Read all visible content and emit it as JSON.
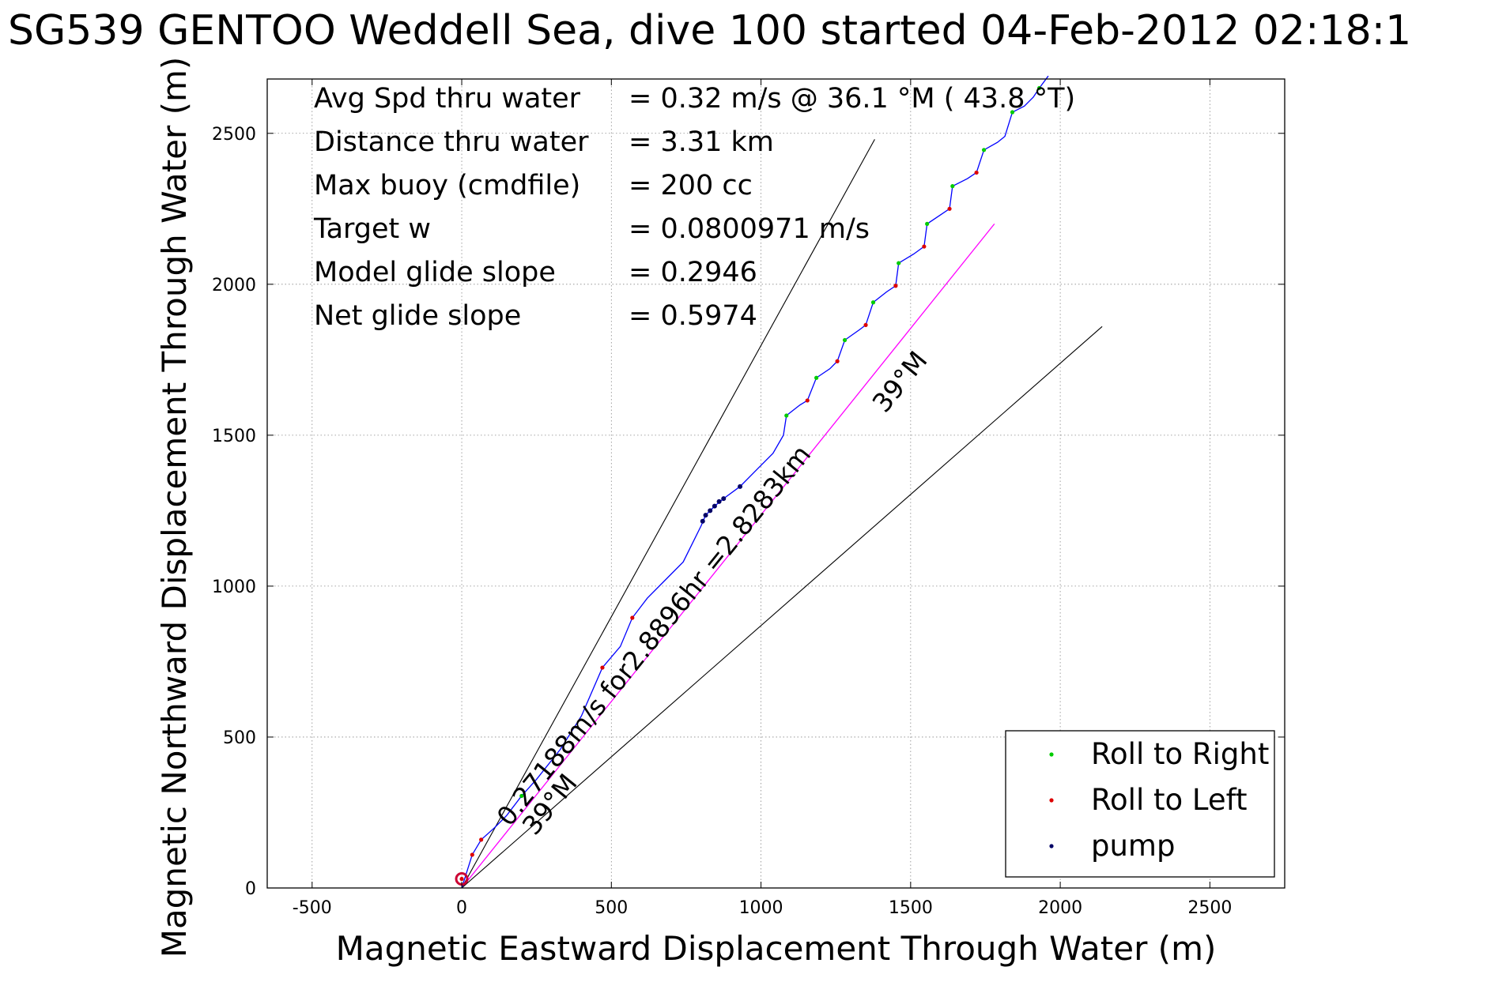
{
  "chart_data": {
    "type": "line",
    "title": "SG539 GENTOO Weddell Sea, dive 100 started 04-Feb-2012 02:18:1",
    "xlabel": "Magnetic Eastward Displacement Through Water (m)",
    "ylabel": "Magnetic Northward Displacement Through Water (m)",
    "xlim": [
      -650,
      2750
    ],
    "ylim": [
      0,
      2680
    ],
    "xticks": [
      -500,
      0,
      500,
      1000,
      1500,
      2000,
      2500
    ],
    "yticks": [
      0,
      500,
      1000,
      1500,
      2000,
      2500
    ],
    "grid": true,
    "legend_position": "bottom-right",
    "stats": [
      {
        "label": "Avg Spd thru water",
        "value": "=  0.32 m/s @  36.1 °M ( 43.8 °T)"
      },
      {
        "label": "Distance thru water",
        "value": "=  3.31 km"
      },
      {
        "label": "Max buoy (cmdfile)",
        "value": "= 200 cc"
      },
      {
        "label": "Target w",
        "value": "= 0.0800971 m/s"
      },
      {
        "label": "Model glide slope",
        "value": "= 0.2946"
      },
      {
        "label": "Net glide slope",
        "value": "= 0.5974"
      }
    ],
    "annotations": {
      "current_label": "0.27188m/s for2.8896hr =2.8283km",
      "heading_label_upper": "39°M",
      "heading_label_lower": "39°M"
    },
    "series": [
      {
        "name": "Roll to Right",
        "color": "#00cc00",
        "marker": "dot",
        "x": [
          200,
          1085,
          1185,
          1280,
          1375,
          1460,
          1555,
          1640,
          1745,
          1840,
          1930
        ],
        "y": [
          305,
          1565,
          1690,
          1815,
          1940,
          2070,
          2200,
          2325,
          2445,
          2570,
          2650
        ]
      },
      {
        "name": "Roll to Left",
        "color": "#dd0000",
        "marker": "dot",
        "x": [
          0,
          35,
          65,
          470,
          570,
          1155,
          1255,
          1350,
          1450,
          1545,
          1630,
          1720
        ],
        "y": [
          30,
          110,
          160,
          730,
          895,
          1615,
          1745,
          1865,
          1995,
          2125,
          2250,
          2370
        ]
      },
      {
        "name": "pump",
        "color": "#000066",
        "marker": "dot",
        "x": [
          805,
          815,
          830,
          845,
          860,
          875,
          930
        ],
        "y": [
          1215,
          1235,
          1250,
          1265,
          1280,
          1290,
          1330
        ]
      },
      {
        "name": "",
        "color": "#0000ff",
        "style": "solid",
        "x": [
          0,
          35,
          65,
          110,
          150,
          200,
          250,
          330,
          400,
          470,
          530,
          570,
          620,
          680,
          740,
          770,
          800,
          815,
          845,
          875,
          930,
          980,
          1040,
          1075,
          1085,
          1130,
          1155,
          1185,
          1230,
          1255,
          1280,
          1330,
          1350,
          1375,
          1420,
          1450,
          1460,
          1510,
          1545,
          1555,
          1600,
          1630,
          1640,
          1690,
          1720,
          1745,
          1790,
          1815,
          1840,
          1880,
          1910,
          1930,
          1960
        ],
        "y": [
          0,
          110,
          160,
          200,
          240,
          305,
          360,
          460,
          570,
          730,
          800,
          895,
          960,
          1020,
          1080,
          1140,
          1200,
          1235,
          1265,
          1290,
          1330,
          1380,
          1440,
          1500,
          1565,
          1600,
          1615,
          1690,
          1720,
          1745,
          1815,
          1850,
          1865,
          1940,
          1975,
          1995,
          2070,
          2100,
          2125,
          2200,
          2230,
          2250,
          2325,
          2350,
          2370,
          2445,
          2470,
          2490,
          2570,
          2590,
          2620,
          2650,
          2690
        ]
      },
      {
        "name": "",
        "color": "#ff00ff",
        "style": "solid",
        "x": [
          0,
          1780
        ],
        "y": [
          0,
          2200
        ]
      },
      {
        "name": "",
        "color": "#000000",
        "style": "solid",
        "x": [
          0,
          1380
        ],
        "y": [
          0,
          2480
        ]
      },
      {
        "name": "",
        "color": "#000000",
        "style": "solid",
        "x": [
          0,
          2140
        ],
        "y": [
          0,
          1860
        ]
      }
    ],
    "start_marker": {
      "x": 0,
      "y": 30,
      "color": "#cc0033"
    }
  }
}
